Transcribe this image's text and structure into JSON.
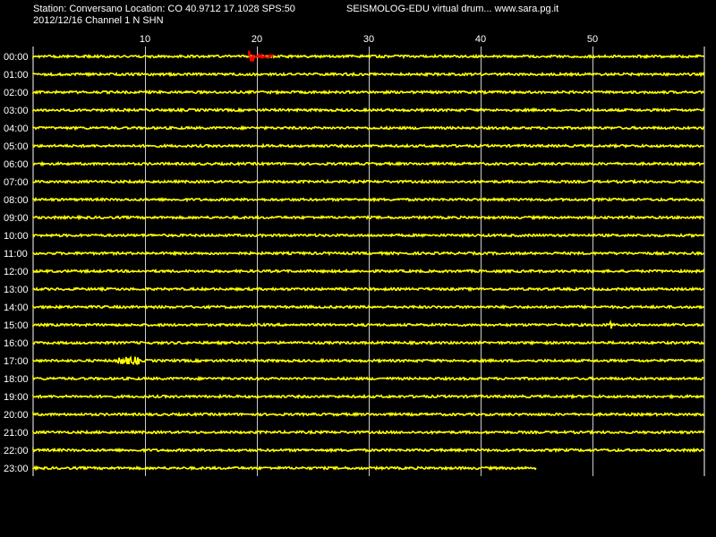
{
  "header": {
    "station_line": "Station: Conversano Location: CO 40.9712 17.1028 SPS:50",
    "title": "SEISMOLOG-EDU virtual drum... www.sara.pg.it",
    "date_channel": "2012/12/16  Channel 1 N SHN"
  },
  "colors": {
    "background": "#000000",
    "trace": "#ffff00",
    "event": "#ff0000",
    "grid": "#ffffff",
    "text": "#ffffff"
  },
  "chart_data": {
    "type": "line",
    "title": "SEISMOLOG-EDU virtual drum... www.sara.pg.it",
    "x_axis": {
      "unit": "minutes",
      "range": [
        0,
        60
      ],
      "ticks": [
        10,
        20,
        30,
        40,
        50
      ],
      "grid": true
    },
    "rows": [
      "00:00",
      "01:00",
      "02:00",
      "03:00",
      "04:00",
      "05:00",
      "06:00",
      "07:00",
      "08:00",
      "09:00",
      "10:00",
      "11:00",
      "12:00",
      "13:00",
      "14:00",
      "15:00",
      "16:00",
      "17:00",
      "18:00",
      "19:00",
      "20:00",
      "21:00",
      "22:00",
      "23:00"
    ],
    "row_end_minute": [
      60,
      60,
      60,
      60,
      60,
      60,
      60,
      60,
      60,
      60,
      60,
      60,
      60,
      60,
      60,
      60,
      60,
      60,
      60,
      60,
      60,
      60,
      60,
      45
    ],
    "events": [
      {
        "hour": "00:00",
        "start_minute": 19.3,
        "end_minute": 21.5,
        "color": "#ff0000"
      },
      {
        "hour": "15:00",
        "start_minute": 51.5,
        "end_minute": 51.9,
        "color": "#ffff00"
      },
      {
        "hour": "17:00",
        "start_minute": 7.5,
        "end_minute": 9.5,
        "color": "#ffff00"
      }
    ]
  }
}
